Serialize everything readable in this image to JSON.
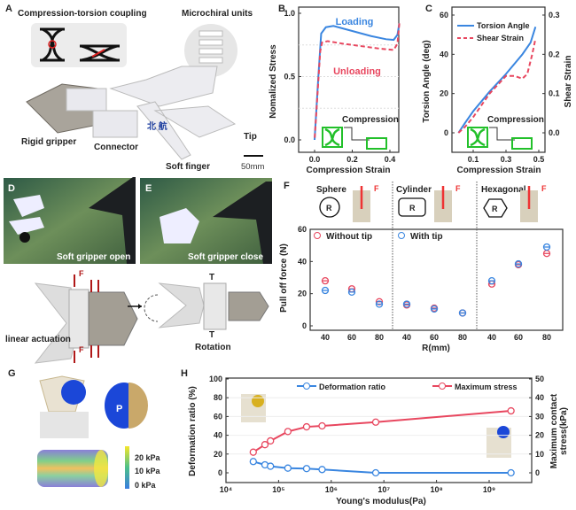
{
  "panels": {
    "A": {
      "letter": "A",
      "coupling": "Compression-torsion coupling",
      "microchiral": "Microchiral units",
      "rigid": "Rigid gripper",
      "connector": "Connector",
      "soft": "Soft finger",
      "tip": "Tip",
      "scale": "50mm",
      "chinese": "北 航"
    },
    "B": {
      "letter": "B"
    },
    "C": {
      "letter": "C"
    },
    "D": {
      "letter": "D",
      "caption": "Soft gripper open"
    },
    "E": {
      "letter": "E",
      "caption": "Soft gripper close",
      "force": "F",
      "torque": "T",
      "linear": "linear actuation",
      "rotation": "Rotation"
    },
    "F": {
      "letter": "F",
      "shapes": [
        "Sphere",
        "Cylinder",
        "Hexagonal"
      ],
      "radius": "R",
      "force": "F"
    },
    "G": {
      "letter": "G",
      "pressure": "P",
      "colorbar": [
        "20 kPa",
        "10 kPa",
        "0 kPa"
      ]
    },
    "H": {
      "letter": "H"
    }
  },
  "colors": {
    "blue": "#3a86e0",
    "red": "#e8475f",
    "green": "#22c02a"
  },
  "chart_data": [
    {
      "id": "B",
      "type": "line",
      "xlabel": "Compression Strain",
      "ylabel": "Nomalized Stress",
      "xticks": [
        "0.0",
        "0.2",
        "0.4"
      ],
      "yticks": [
        "0.0",
        "0.5",
        "1.0"
      ],
      "xlim": [
        -0.085,
        0.45
      ],
      "ylim": [
        0,
        1
      ],
      "series": [
        {
          "name": "Loading",
          "style": "solid",
          "color": "#3a86e0",
          "x": [
            0,
            0.02,
            0.035,
            0.06,
            0.1,
            0.2,
            0.3,
            0.38,
            0.42,
            0.44,
            0.45
          ],
          "y": [
            0,
            0.5,
            0.84,
            0.89,
            0.9,
            0.86,
            0.82,
            0.795,
            0.79,
            0.83,
            0.92
          ]
        },
        {
          "name": "Unloading",
          "style": "dashed",
          "color": "#e8475f",
          "x": [
            0.45,
            0.44,
            0.42,
            0.35,
            0.25,
            0.15,
            0.07,
            0.04,
            0.03,
            0.015,
            0
          ],
          "y": [
            0.92,
            0.76,
            0.71,
            0.72,
            0.74,
            0.76,
            0.78,
            0.77,
            0.7,
            0.35,
            0
          ]
        }
      ],
      "annotation": "Compression"
    },
    {
      "id": "C",
      "type": "line",
      "xlabel": "Compression Strain",
      "ylabel": "Torsion Angle (deg)",
      "y2label": "Shear Strain",
      "xticks": [
        "0.1",
        "0.3",
        "0.5"
      ],
      "yticks": [
        "0",
        "20",
        "40",
        "60"
      ],
      "y2ticks": [
        "0.0",
        "0.1",
        "0.2",
        "0.3"
      ],
      "ylim": [
        -10,
        60
      ],
      "y2lim": [
        -0.05,
        0.3
      ],
      "series": [
        {
          "name": "Torsion Angle",
          "axis": "left",
          "style": "solid",
          "color": "#3a86e0",
          "x": [
            0.01,
            0.05,
            0.1,
            0.2,
            0.3,
            0.4,
            0.45,
            0.48
          ],
          "y": [
            0,
            5,
            11,
            21,
            30,
            40,
            46,
            54
          ]
        },
        {
          "name": "Shear Strain",
          "axis": "right",
          "style": "dashed",
          "color": "#e8475f",
          "x": [
            0.01,
            0.05,
            0.1,
            0.2,
            0.3,
            0.35,
            0.4,
            0.43,
            0.46,
            0.48
          ],
          "y": [
            0,
            0.015,
            0.04,
            0.1,
            0.145,
            0.145,
            0.138,
            0.15,
            0.2,
            0.24
          ]
        }
      ],
      "annotation": "Compression"
    },
    {
      "id": "F",
      "type": "scatter",
      "xlabel": "R(mm)",
      "ylabel": "Pull off force (N)",
      "yticks": [
        "0",
        "20",
        "40",
        "60"
      ],
      "ylim": [
        0,
        60
      ],
      "categories": [
        "40",
        "60",
        "80",
        "40",
        "60",
        "80",
        "40",
        "60",
        "80"
      ],
      "series": [
        {
          "name": "Without tip",
          "color": "#e8475f",
          "values": [
            28,
            23,
            15,
            13,
            11,
            8,
            26,
            38,
            45
          ]
        },
        {
          "name": "With tip",
          "color": "#3a86e0",
          "values": [
            22,
            21,
            13.5,
            13.5,
            10.5,
            8,
            28,
            38.5,
            49
          ]
        }
      ]
    },
    {
      "id": "H",
      "type": "line",
      "xlabel": "Young's modulus(Pa)",
      "ylabel": "Deformation ratio (%)",
      "y2label": "Maximum contact stress(kPa)",
      "xscale": "log",
      "xticks": [
        "10⁴",
        "10⁵",
        "10⁶",
        "10⁷",
        "10⁸",
        "10⁹"
      ],
      "yticks": [
        "0",
        "20",
        "40",
        "60",
        "80",
        "100"
      ],
      "y2ticks": [
        "0",
        "10",
        "20",
        "30",
        "40",
        "50"
      ],
      "ylim": [
        -10,
        100
      ],
      "y2lim": [
        -5,
        50
      ],
      "x": [
        33000,
        55000,
        70000,
        150000,
        340000,
        670000,
        7000000,
        2600000000
      ],
      "series": [
        {
          "name": "Deformation ratio",
          "axis": "left",
          "color": "#3a86e0",
          "values": [
            12,
            8.5,
            7,
            5,
            4.5,
            3.5,
            0,
            0
          ]
        },
        {
          "name": "Maximum stress",
          "axis": "right",
          "color": "#e8475f",
          "values": [
            11,
            15,
            17,
            22,
            24.5,
            25,
            27,
            33
          ]
        }
      ]
    }
  ]
}
